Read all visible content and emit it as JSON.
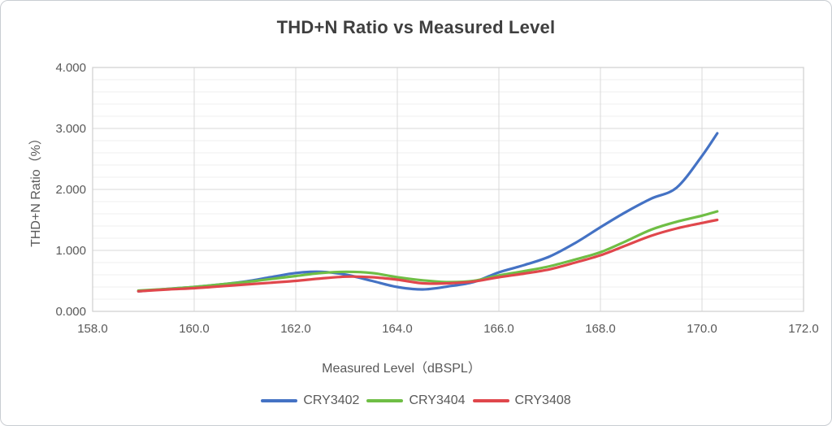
{
  "chart_data": {
    "type": "line",
    "title": "THD+N Ratio vs Measured Level",
    "xlabel": "Measured Level（dBSPL）",
    "ylabel": "THD+N Ratio（%）",
    "xlim": [
      158.0,
      172.0
    ],
    "ylim": [
      0.0,
      4.0
    ],
    "x_tick_values": [
      158.0,
      160.0,
      162.0,
      164.0,
      166.0,
      168.0,
      170.0,
      172.0
    ],
    "x_tick_labels": [
      "158.0",
      "160.0",
      "162.0",
      "164.0",
      "166.0",
      "168.0",
      "170.0",
      "172.0"
    ],
    "y_tick_values": [
      0,
      1,
      2,
      3,
      4
    ],
    "y_tick_labels": [
      "0.000",
      "1.000",
      "2.000",
      "3.000",
      "4.000"
    ],
    "y_minor_step": 0.2,
    "x_major_step": 2.0,
    "grid": true,
    "smooth": true,
    "legend_position": "bottom",
    "grid_major_color": "#d9d9d9",
    "grid_minor_color": "#efefef",
    "axis_text_color": "#595959",
    "x": [
      158.9,
      159.5,
      160.0,
      160.5,
      161.0,
      161.5,
      162.0,
      162.5,
      163.0,
      163.5,
      164.0,
      164.5,
      165.0,
      165.5,
      166.0,
      166.5,
      167.0,
      167.5,
      168.0,
      168.5,
      169.0,
      169.5,
      170.0,
      170.3
    ],
    "series": [
      {
        "name": "CRY3402",
        "color": "#4472C4",
        "values": [
          0.33,
          0.37,
          0.4,
          0.44,
          0.49,
          0.56,
          0.63,
          0.65,
          0.6,
          0.5,
          0.4,
          0.36,
          0.41,
          0.48,
          0.64,
          0.76,
          0.9,
          1.12,
          1.38,
          1.63,
          1.85,
          2.03,
          2.55,
          2.92
        ]
      },
      {
        "name": "CRY3404",
        "color": "#6FBE45",
        "values": [
          0.34,
          0.37,
          0.4,
          0.44,
          0.48,
          0.53,
          0.58,
          0.63,
          0.65,
          0.63,
          0.56,
          0.51,
          0.48,
          0.5,
          0.59,
          0.66,
          0.74,
          0.85,
          0.97,
          1.15,
          1.34,
          1.47,
          1.57,
          1.64
        ]
      },
      {
        "name": "CRY3408",
        "color": "#E0474C",
        "values": [
          0.33,
          0.36,
          0.38,
          0.41,
          0.44,
          0.47,
          0.5,
          0.54,
          0.57,
          0.56,
          0.52,
          0.46,
          0.46,
          0.49,
          0.56,
          0.62,
          0.69,
          0.8,
          0.92,
          1.08,
          1.24,
          1.36,
          1.45,
          1.5
        ]
      }
    ]
  }
}
